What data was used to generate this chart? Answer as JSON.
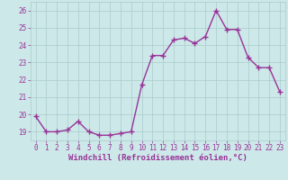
{
  "x": [
    0,
    1,
    2,
    3,
    4,
    5,
    6,
    7,
    8,
    9,
    10,
    11,
    12,
    13,
    14,
    15,
    16,
    17,
    18,
    19,
    20,
    21,
    22,
    23
  ],
  "y": [
    19.9,
    19.0,
    19.0,
    19.1,
    19.6,
    19.0,
    18.8,
    18.8,
    18.9,
    19.0,
    21.7,
    23.4,
    23.4,
    24.3,
    24.4,
    24.1,
    24.5,
    26.0,
    24.9,
    24.9,
    23.3,
    22.7,
    22.7,
    21.3
  ],
  "line_color": "#993399",
  "marker": "+",
  "marker_size": 4,
  "marker_lw": 1.0,
  "line_width": 1.0,
  "bg_color": "#cce8e8",
  "grid_color": "#aacccc",
  "xlabel": "Windchill (Refroidissement éolien,°C)",
  "xlabel_color": "#993399",
  "tick_color": "#993399",
  "ylim": [
    18.5,
    26.5
  ],
  "xlim": [
    -0.5,
    23.5
  ],
  "yticks": [
    19,
    20,
    21,
    22,
    23,
    24,
    25,
    26
  ],
  "xticks": [
    0,
    1,
    2,
    3,
    4,
    5,
    6,
    7,
    8,
    9,
    10,
    11,
    12,
    13,
    14,
    15,
    16,
    17,
    18,
    19,
    20,
    21,
    22,
    23
  ],
  "tick_fontsize": 5.5,
  "xlabel_fontsize": 6.5
}
